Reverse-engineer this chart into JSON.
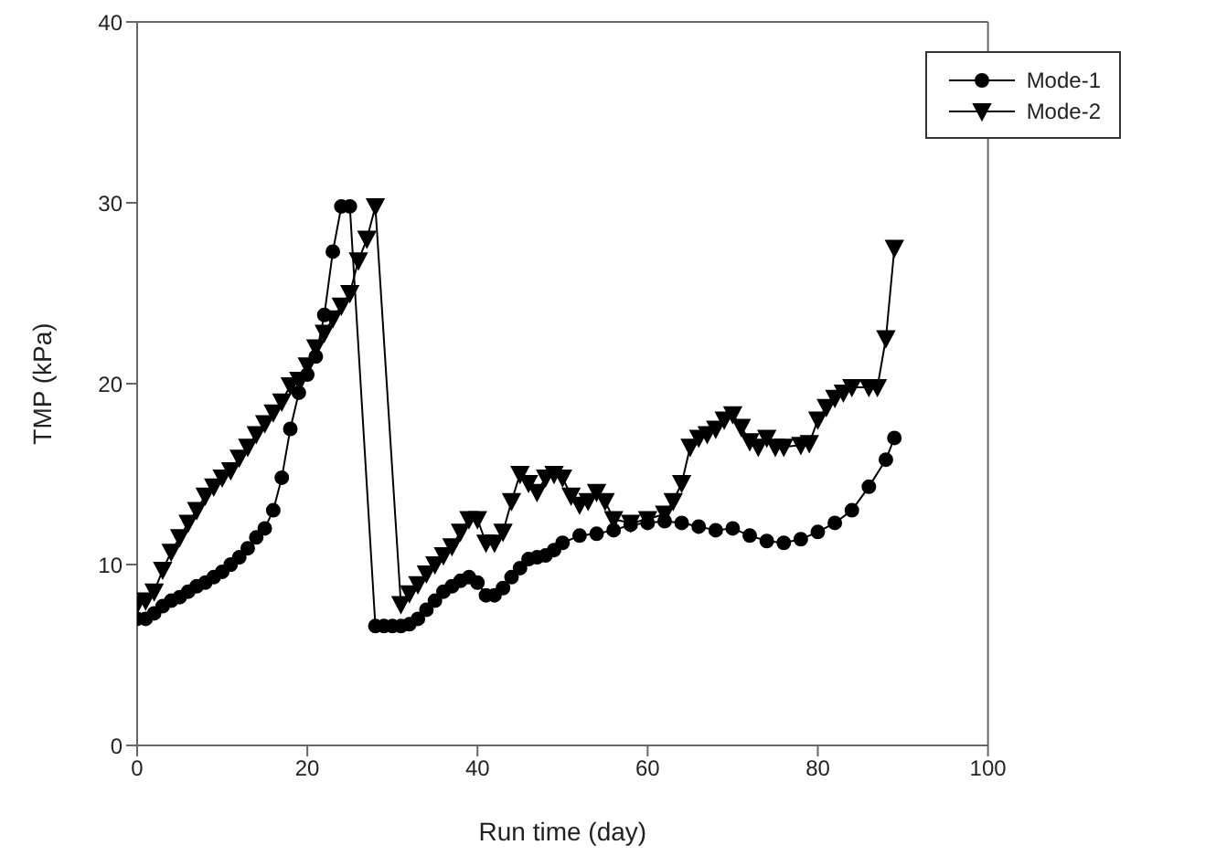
{
  "chart_data": {
    "type": "line",
    "xlabel": "Run time (day)",
    "ylabel": "TMP (kPa)",
    "xlim": [
      0,
      100
    ],
    "xticks": [
      0,
      20,
      40,
      60,
      80,
      100
    ],
    "ylim": [
      0,
      40
    ],
    "yticks": [
      0,
      10,
      20,
      30,
      40
    ],
    "grid": false,
    "legend": "top right",
    "line_style": "solid",
    "series": [
      {
        "name": "Mode-1",
        "color": "#000000",
        "marker": "circle",
        "x": [
          0,
          1,
          2,
          3,
          4,
          5,
          6,
          7,
          8,
          9,
          10,
          11,
          12,
          13,
          14,
          15,
          16,
          17,
          18,
          19,
          20,
          21,
          22,
          23,
          24,
          25,
          28,
          29,
          30,
          31,
          32,
          33,
          34,
          35,
          36,
          37,
          38,
          39,
          40,
          41,
          42,
          43,
          44,
          45,
          46,
          47,
          48,
          49,
          50,
          52,
          54,
          56,
          58,
          60,
          62,
          64,
          66,
          68,
          70,
          72,
          74,
          76,
          78,
          80,
          82,
          84,
          86,
          88,
          89
        ],
        "values": [
          7,
          7,
          7.3,
          7.7,
          8,
          8.2,
          8.5,
          8.8,
          9,
          9.3,
          9.6,
          10,
          10.4,
          10.9,
          11.5,
          12,
          13,
          14.8,
          17.5,
          19.5,
          20.5,
          21.5,
          23.8,
          27.3,
          29.8,
          29.8,
          6.6,
          6.6,
          6.6,
          6.6,
          6.7,
          7,
          7.5,
          8,
          8.5,
          8.8,
          9.1,
          9.3,
          9,
          8.3,
          8.3,
          8.7,
          9.3,
          9.8,
          10.3,
          10.4,
          10.5,
          10.8,
          11.2,
          11.6,
          11.7,
          11.9,
          12.2,
          12.3,
          12.4,
          12.3,
          12.1,
          11.9,
          12,
          11.6,
          11.3,
          11.2,
          11.4,
          11.8,
          12.3,
          13,
          14.3,
          15.8,
          17
        ]
      },
      {
        "name": "Mode-2",
        "color": "#000000",
        "marker": "triangle",
        "x": [
          0,
          1,
          2,
          3,
          4,
          5,
          6,
          7,
          8,
          9,
          10,
          11,
          12,
          13,
          14,
          15,
          16,
          17,
          18,
          19,
          20,
          21,
          22,
          23,
          24,
          25,
          26,
          27,
          28,
          31,
          32,
          33,
          34,
          35,
          36,
          37,
          38,
          39,
          40,
          41,
          42,
          43,
          44,
          45,
          46,
          47,
          48,
          49,
          50,
          51,
          52,
          53,
          54,
          55,
          56,
          58,
          60,
          62,
          63,
          64,
          65,
          66,
          67,
          68,
          69,
          70,
          71,
          72,
          73,
          74,
          75,
          76,
          78,
          79,
          80,
          81,
          82,
          83,
          84,
          86,
          87,
          88,
          89
        ],
        "values": [
          7.8,
          8,
          8.5,
          9.7,
          10.7,
          11.5,
          12.3,
          13,
          13.8,
          14.3,
          14.8,
          15.2,
          15.9,
          16.5,
          17.2,
          17.8,
          18.4,
          19,
          19.9,
          20.2,
          21,
          22,
          22.8,
          23.6,
          24.3,
          25,
          26.8,
          28,
          29.8,
          7.8,
          8.4,
          8.9,
          9.5,
          10,
          10.5,
          11,
          11.8,
          12.5,
          12.5,
          11.2,
          11.2,
          11.8,
          13.5,
          15,
          14.5,
          14,
          14.8,
          15,
          14.8,
          13.8,
          13.3,
          13.5,
          14,
          13.5,
          12.5,
          12.3,
          12.5,
          12.8,
          13.5,
          14.5,
          16.5,
          17,
          17.2,
          17.5,
          18,
          18.3,
          17.6,
          16.8,
          16.5,
          17,
          16.5,
          16.5,
          16.6,
          16.7,
          18,
          18.7,
          19.2,
          19.5,
          19.8,
          19.8,
          19.8,
          22.5,
          27.5
        ]
      }
    ]
  }
}
